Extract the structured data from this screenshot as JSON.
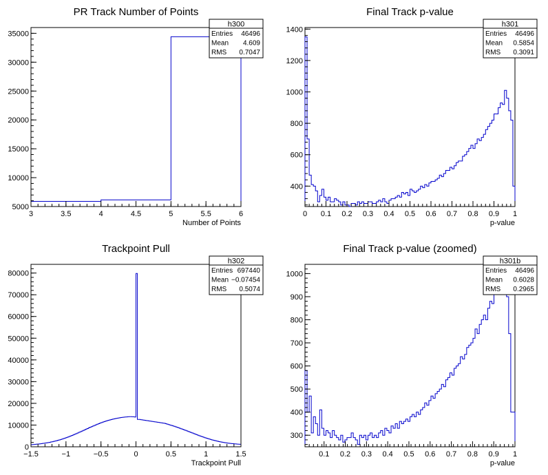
{
  "chart_data": [
    {
      "type": "histogram",
      "title": "PR Track Number of Points",
      "xlabel": "Number of Points",
      "ylabel": "",
      "xlim": [
        3,
        6
      ],
      "ylim": [
        5000,
        36000
      ],
      "xticks": [
        3,
        3.5,
        4,
        4.5,
        5,
        5.5,
        6
      ],
      "xtick_labels": [
        "3",
        "3.5",
        "4",
        "4.5",
        "5",
        "5.5",
        "6"
      ],
      "yticks": [
        5000,
        10000,
        15000,
        20000,
        25000,
        30000,
        35000
      ],
      "ytick_labels": [
        "5000",
        "10000",
        "15000",
        "20000",
        "25000",
        "30000",
        "35000"
      ],
      "bin_edges": [
        3,
        4,
        5,
        6
      ],
      "counts": [
        5900,
        6150,
        34400
      ],
      "stats": {
        "name": "h300",
        "rows": [
          [
            "Entries",
            "46496"
          ],
          [
            "Mean",
            "4.609"
          ],
          [
            "RMS",
            "0.7047"
          ]
        ]
      },
      "grid": false
    },
    {
      "type": "histogram",
      "title": "Final Track p-value",
      "xlabel": "p-value",
      "ylabel": "",
      "xlim": [
        0,
        1
      ],
      "ylim": [
        270,
        1410
      ],
      "xticks": [
        0,
        0.1,
        0.2,
        0.3,
        0.4,
        0.5,
        0.6,
        0.7,
        0.8,
        0.9,
        1
      ],
      "xtick_labels": [
        "0",
        "0.1",
        "0.2",
        "0.3",
        "0.4",
        "0.5",
        "0.6",
        "0.7",
        "0.8",
        "0.9",
        "1"
      ],
      "yticks": [
        400,
        600,
        800,
        1000,
        1200,
        1400
      ],
      "ytick_labels": [
        "400",
        "600",
        "800",
        "1000",
        "1200",
        "1400"
      ],
      "bins": 100,
      "counts": [
        1350,
        700,
        470,
        410,
        400,
        370,
        300,
        340,
        380,
        330,
        310,
        330,
        300,
        300,
        320,
        310,
        300,
        280,
        300,
        280,
        280,
        270,
        290,
        290,
        280,
        300,
        290,
        300,
        290,
        290,
        300,
        300,
        290,
        290,
        300,
        310,
        300,
        320,
        300,
        290,
        310,
        320,
        320,
        330,
        340,
        330,
        360,
        350,
        360,
        340,
        380,
        370,
        360,
        370,
        380,
        400,
        390,
        410,
        400,
        420,
        430,
        430,
        440,
        450,
        470,
        460,
        480,
        500,
        500,
        520,
        510,
        530,
        550,
        560,
        560,
        590,
        600,
        620,
        640,
        660,
        640,
        670,
        700,
        690,
        710,
        730,
        760,
        780,
        800,
        820,
        860,
        860,
        900,
        930,
        920,
        1010,
        960,
        880,
        820,
        400
      ],
      "stats": {
        "name": "h301",
        "rows": [
          [
            "Entries",
            "46496"
          ],
          [
            "Mean",
            "0.5854"
          ],
          [
            "RMS",
            "0.3091"
          ]
        ]
      },
      "grid": false
    },
    {
      "type": "histogram",
      "title": "Trackpoint Pull",
      "xlabel": "Trackpoint Pull",
      "ylabel": "",
      "xlim": [
        -1.5,
        1.5
      ],
      "ylim": [
        0,
        84000
      ],
      "xticks": [
        -1.5,
        -1,
        -0.5,
        0,
        0.5,
        1,
        1.5
      ],
      "xtick_labels": [
        "−1.5",
        "−1",
        "−0.5",
        "0",
        "0.5",
        "1",
        "1.5"
      ],
      "yticks": [
        0,
        10000,
        20000,
        30000,
        40000,
        50000,
        60000,
        70000,
        80000
      ],
      "ytick_labels": [
        "0",
        "10000",
        "20000",
        "30000",
        "40000",
        "50000",
        "60000",
        "70000",
        "80000"
      ],
      "bins": 150,
      "counts": [
        970,
        1020,
        1080,
        1140,
        1210,
        1280,
        1360,
        1440,
        1530,
        1630,
        1730,
        1840,
        1960,
        2080,
        2210,
        2350,
        2500,
        2660,
        2820,
        3000,
        3180,
        3380,
        3580,
        3790,
        4010,
        4240,
        4480,
        4730,
        4980,
        5240,
        5510,
        5780,
        6060,
        6350,
        6640,
        6930,
        7220,
        7520,
        7820,
        8120,
        8410,
        8700,
        8990,
        9280,
        9560,
        9840,
        10110,
        10370,
        10630,
        10880,
        11130,
        11360,
        11580,
        11790,
        12000,
        12190,
        12370,
        12540,
        12700,
        12850,
        13000,
        13130,
        13250,
        13360,
        13460,
        13550,
        13630,
        13700,
        13760,
        13810,
        13850,
        13850,
        13820,
        13770,
        13700,
        79800,
        12600,
        12600,
        12500,
        12400,
        12300,
        12200,
        12100,
        12000,
        11900,
        11800,
        11700,
        11600,
        11500,
        11400,
        11300,
        11200,
        11100,
        11000,
        10900,
        10800,
        10620,
        10430,
        10240,
        10040,
        9840,
        9630,
        9420,
        9200,
        8980,
        8750,
        8520,
        8290,
        8050,
        7810,
        7570,
        7320,
        7070,
        6820,
        6570,
        6320,
        6070,
        5820,
        5570,
        5330,
        5090,
        4850,
        4620,
        4390,
        4170,
        3960,
        3750,
        3550,
        3360,
        3180,
        3000,
        2840,
        2680,
        2530,
        2390,
        2260,
        2140,
        2020,
        1910,
        1810,
        1720,
        1630,
        1550,
        1480,
        1410,
        1350,
        1290,
        1240,
        1190,
        1150
      ],
      "stats": {
        "name": "h302",
        "rows": [
          [
            "Entries",
            "697440"
          ],
          [
            "Mean",
            "−0.07454"
          ],
          [
            "RMS",
            "0.5074"
          ]
        ]
      },
      "grid": false
    },
    {
      "type": "histogram",
      "title": "Final Track p-value (zoomed)",
      "xlabel": "p-value",
      "ylabel": "",
      "xlim": [
        0.01,
        1
      ],
      "ylim": [
        250,
        1040
      ],
      "xticks": [
        0.1,
        0.2,
        0.3,
        0.4,
        0.5,
        0.6,
        0.7,
        0.8,
        0.9,
        1
      ],
      "xtick_labels": [
        "0.1",
        "0.2",
        "0.3",
        "0.4",
        "0.5",
        "0.6",
        "0.7",
        "0.8",
        "0.9",
        "1"
      ],
      "yticks": [
        300,
        400,
        500,
        600,
        700,
        800,
        900,
        1000
      ],
      "ytick_labels": [
        "300",
        "400",
        "500",
        "600",
        "700",
        "800",
        "900",
        "1000"
      ],
      "bins": 100,
      "counts": [
        580,
        400,
        470,
        310,
        380,
        350,
        300,
        410,
        330,
        300,
        320,
        310,
        290,
        320,
        300,
        290,
        280,
        300,
        270,
        280,
        290,
        290,
        310,
        290,
        280,
        260,
        300,
        290,
        300,
        280,
        300,
        310,
        290,
        300,
        290,
        310,
        320,
        300,
        330,
        320,
        310,
        340,
        330,
        350,
        330,
        360,
        350,
        360,
        370,
        360,
        380,
        390,
        380,
        400,
        390,
        410,
        420,
        440,
        430,
        450,
        470,
        460,
        480,
        490,
        500,
        520,
        510,
        540,
        550,
        570,
        560,
        590,
        600,
        610,
        640,
        630,
        650,
        680,
        690,
        700,
        720,
        760,
        740,
        780,
        800,
        820,
        800,
        850,
        880,
        870,
        920,
        910,
        940,
        950,
        980,
        930,
        900,
        740,
        400,
        400
      ],
      "stats": {
        "name": "h301b",
        "rows": [
          [
            "Entries",
            "46496"
          ],
          [
            "Mean",
            "0.6028"
          ],
          [
            "RMS",
            "0.2965"
          ]
        ]
      },
      "grid": false
    }
  ]
}
